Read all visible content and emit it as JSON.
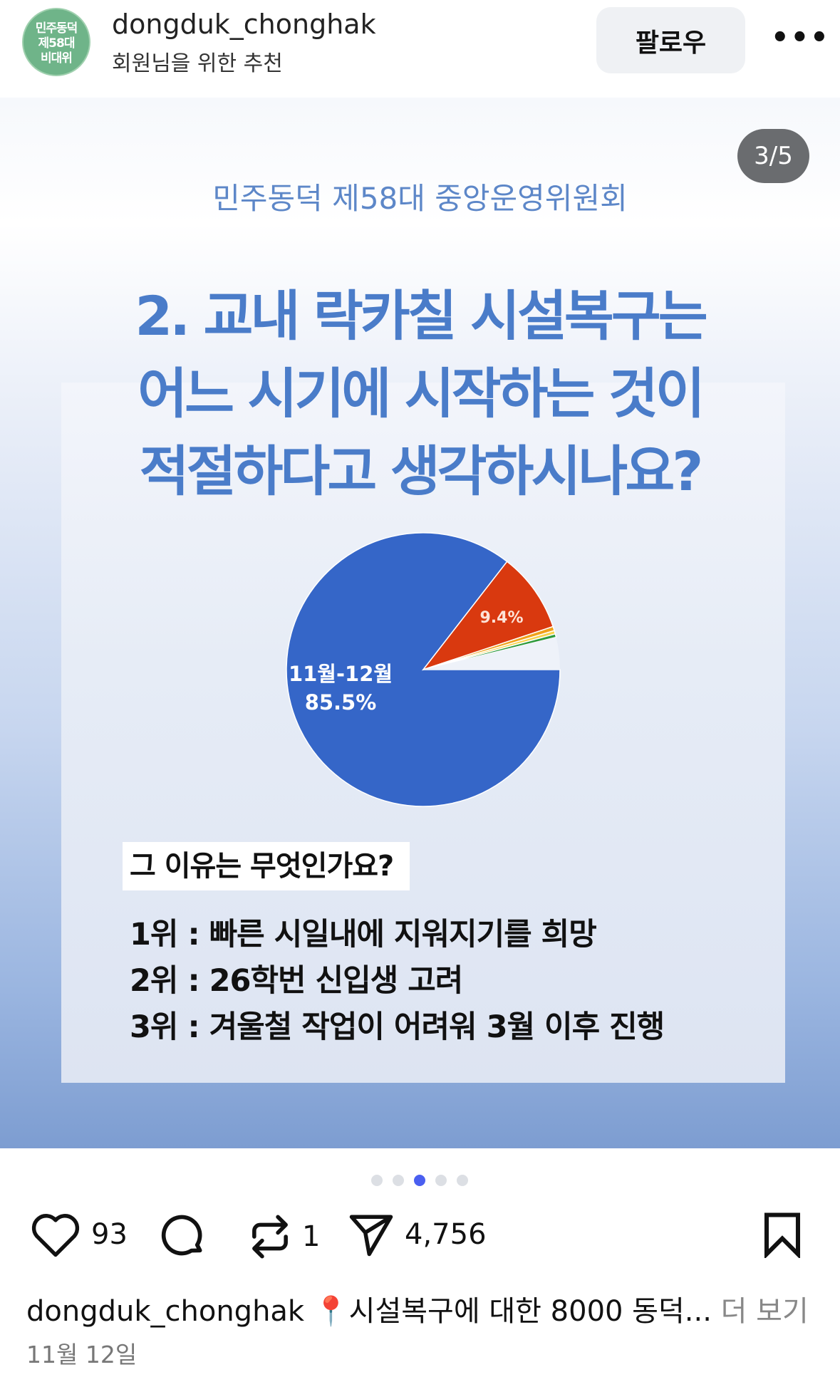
{
  "header": {
    "avatar_text": [
      "민주동덕",
      "제58대",
      "비대위"
    ],
    "username": "dongduk_chonghak",
    "subtitle": "회원님을 위한 추천",
    "follow_label": "팔로우",
    "more_icon": "more-horizontal-icon"
  },
  "post": {
    "counter": "3/5",
    "organization": "민주동덕 제58대 중앙운영위원회",
    "title_lines": [
      "2. 교내 락카칠 시설복구는",
      "어느 시기에 시작하는 것이",
      "적절하다고 생각하시나요?"
    ],
    "reason_question": "그 이유는 무엇인가요?",
    "ranks": [
      "1위 : 빠른 시일내에 지워지기를 희망",
      "2위 : 26학번 신입생 고려",
      "3위 : 겨울철 작업이 어려워 3월 이후 진행"
    ]
  },
  "chart_data": {
    "type": "pie",
    "slices": [
      {
        "label": "11월-12월",
        "value": 85.5,
        "value_label": "85.5%",
        "color": "#3566c8"
      },
      {
        "label": "",
        "value": 9.4,
        "value_label": "9.4%",
        "color": "#d9390f"
      },
      {
        "label": "",
        "value": 0.5,
        "color": "#f0a11a"
      },
      {
        "label": "",
        "value": 0.4,
        "color": "#f7d24a"
      },
      {
        "label": "",
        "value": 0.4,
        "color": "#2e9a3c"
      },
      {
        "label": "",
        "value": 3.8,
        "color": "#eef2f9"
      }
    ]
  },
  "carousel": {
    "total": 5,
    "active": 3,
    "active_color": "#4a5ff0"
  },
  "actions": {
    "likes": "93",
    "reposts": "1",
    "shares": "4,756"
  },
  "caption": {
    "username": "dongduk_chonghak",
    "pin_emoji": "📍",
    "text": "시설복구에 대한 8000 동덕...",
    "more": "더 보기"
  },
  "date": "11월 12일"
}
